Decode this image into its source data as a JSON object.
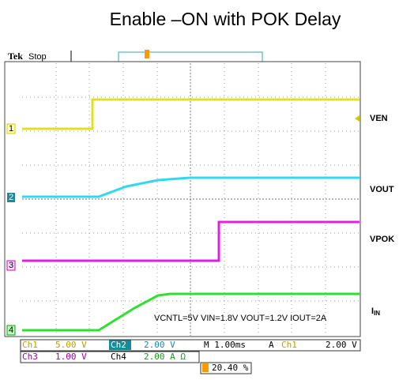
{
  "title": "Enable –ON with POK Delay",
  "scope": {
    "brand": "Tek",
    "status": "Stop"
  },
  "traces": [
    {
      "marker": "1",
      "label": "VEN"
    },
    {
      "marker": "2",
      "label": "VOUT"
    },
    {
      "marker": "3",
      "label": "VPOK"
    },
    {
      "marker": "4",
      "label": "I",
      "label_sub": "IN"
    }
  ],
  "annotation": "VCNTL=5V  VIN=1.8V  VOUT=1.2V  IOUT=2A",
  "readouts": {
    "ch1": {
      "name": "Ch1",
      "scale": "5.00 V"
    },
    "ch2": {
      "name": "Ch2",
      "scale": "2.00 V"
    },
    "ch3": {
      "name": "Ch3",
      "scale": "1.00 V"
    },
    "ch4": {
      "name": "Ch4",
      "scale": "2.00 A Ω"
    },
    "timebase": "M 1.00ms",
    "trigger": {
      "mode": "A",
      "source": "Ch1",
      "level": "2.00 V"
    },
    "position": "20.40 %"
  }
}
